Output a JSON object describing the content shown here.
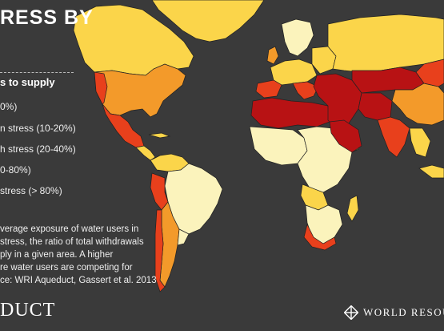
{
  "title": "RESS BY",
  "legend": {
    "heading": "s to supply",
    "items": [
      {
        "label": "0%)",
        "color": "#fbf3bc"
      },
      {
        "label": "n stress (10-20%)",
        "color": "#fbd54a"
      },
      {
        "label": "h stress (20-40%)",
        "color": "#f39a2a"
      },
      {
        "label": "0-80%)",
        "color": "#e8401c"
      },
      {
        "label": "stress (> 80%)",
        "color": "#b81214"
      }
    ]
  },
  "note": {
    "lines": [
      "verage exposure of water users in",
      "stress, the ratio of total withdrawals",
      "ply in a given area. A higher",
      "re water users are competing for",
      "ce: WRI Aqueduct, Gassert et al. 2013"
    ]
  },
  "brand": {
    "left": "DUCT",
    "right": "WORLD RESOU",
    "logo_icon": "wri-knot-icon"
  },
  "colors": {
    "background": "#3a3a3a",
    "border": "#222222"
  }
}
